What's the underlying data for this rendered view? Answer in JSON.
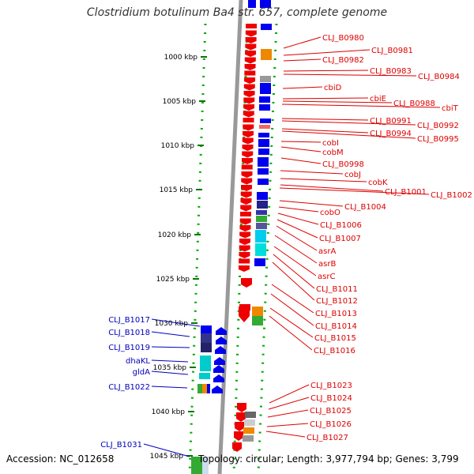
{
  "title": "Clostridium botulinum Ba4 str. 657, complete genome",
  "footer": {
    "accession": "Accession: NC_012658",
    "summary": "Topology: circular; Length: 3,977,794 bp; Genes: 3,799"
  },
  "ruler_ticks": [
    "1000 kbp",
    "1005 kbp",
    "1010 kbp",
    "1015 kbp",
    "1020 kbp",
    "1025 kbp",
    "1030 kbp",
    "1035 kbp",
    "1040 kbp",
    "1045 kbp"
  ],
  "colors": {
    "reverse_strand_label": "#dd0000",
    "forward_strand_label": "#0000bb",
    "reverse_gene": "#ee0000",
    "forward_gene": "#0000ee",
    "backbone": "#999999",
    "dotted_guide": "#00aa00",
    "leader_red": "#dd0000",
    "leader_blue": "#0000bb"
  },
  "genes_right": [
    "CLJ_B0980",
    "CLJ_B0981",
    "CLJ_B0982",
    "CLJ_B0983",
    "CLJ_B0984",
    "cbiD",
    "cbiE",
    "CLJ_B0988",
    "cbiT",
    "CLJ_B0991",
    "CLJ_B0992",
    "CLJ_B0994",
    "CLJ_B0995",
    "cobI",
    "cobM",
    "CLJ_B0998",
    "cobJ",
    "cobK",
    "CLJ_B1001",
    "CLJ_B1002",
    "CLJ_B1004",
    "cobO",
    "CLJ_B1006",
    "CLJ_B1007",
    "asrA",
    "asrB",
    "asrC",
    "CLJ_B1011",
    "CLJ_B1012",
    "CLJ_B1013",
    "CLJ_B1014",
    "CLJ_B1015",
    "CLJ_B1016",
    "CLJ_B1023",
    "CLJ_B1024",
    "CLJ_B1025",
    "CLJ_B1026",
    "CLJ_B1027"
  ],
  "genes_left": [
    "CLJ_B1017",
    "CLJ_B1018",
    "CLJ_B1019",
    "dhaKL",
    "gldA",
    "CLJ_B1022",
    "CLJ_B1031"
  ]
}
